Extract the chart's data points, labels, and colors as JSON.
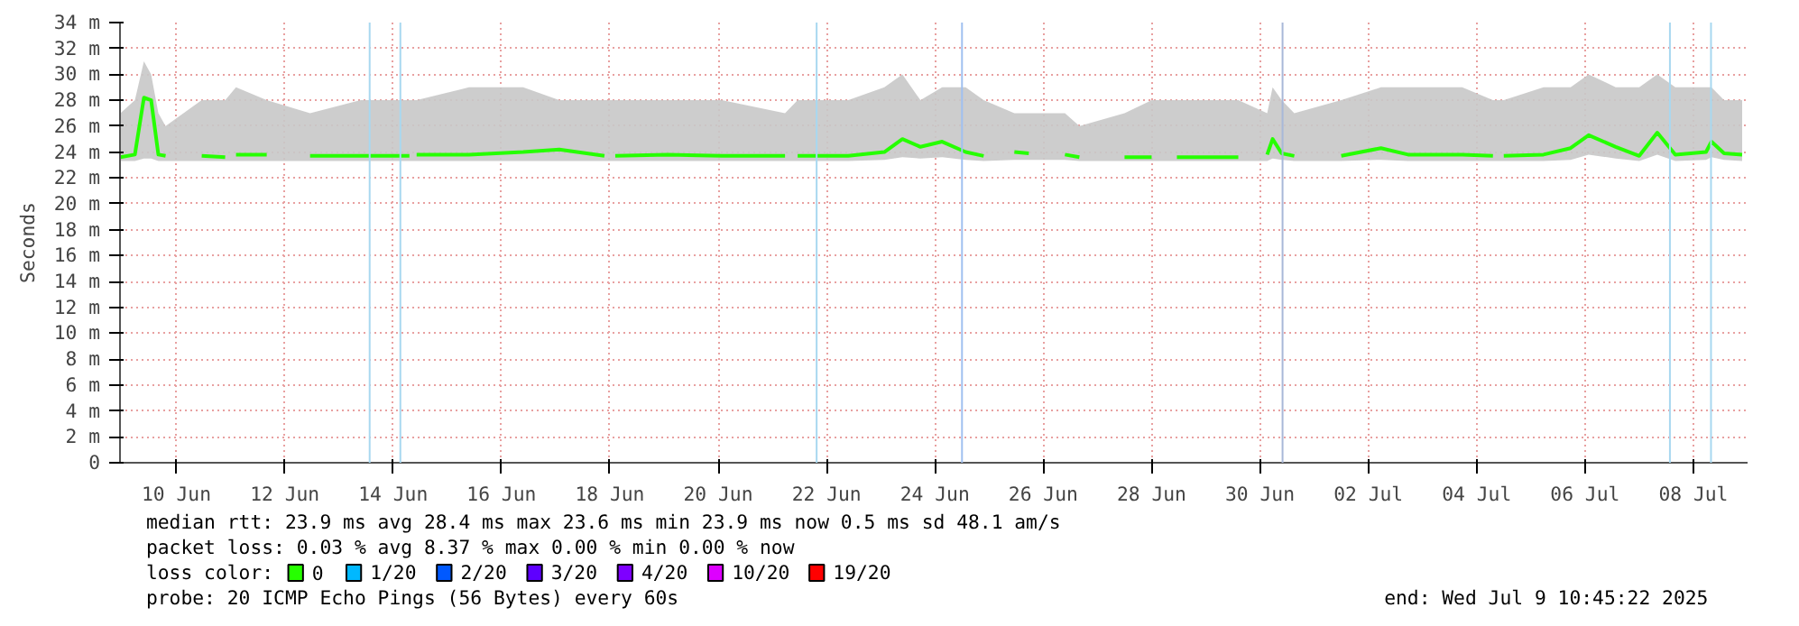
{
  "chart_data": {
    "type": "line",
    "ylabel": "Seconds",
    "x": [
      "2025-06-08T23:12",
      "2025-06-09T05:36",
      "2025-06-09T09:36",
      "2025-06-09T12:48",
      "2025-06-09T16:00",
      "2025-06-09T19:12",
      "2025-06-10T01:36",
      "2025-06-10T11:12",
      "2025-06-10T21:36",
      "2025-06-11T00:00",
      "2025-06-11T02:24",
      "2025-06-11T16:00",
      "2025-06-12T01:36",
      "2025-06-12T11:12",
      "2025-06-13T09:36",
      "2025-06-14T07:12",
      "2025-06-14T08:48",
      "2025-06-14T10:24",
      "2025-06-15T09:36",
      "2025-06-16T09:36",
      "2025-06-17T01:36",
      "2025-06-17T21:36",
      "2025-06-18T00:00",
      "2025-06-18T02:24",
      "2025-06-19T01:36",
      "2025-06-20T01:36",
      "2025-06-21T05:36",
      "2025-06-21T08:00",
      "2025-06-21T11:12",
      "2025-06-22T09:36",
      "2025-06-23T01:36",
      "2025-06-23T09:36",
      "2025-06-23T17:36",
      "2025-06-24T03:12",
      "2025-06-24T13:36",
      "2025-06-24T21:36",
      "2025-06-25T01:36",
      "2025-06-25T11:12",
      "2025-06-25T17:36",
      "2025-06-26T01:36",
      "2025-06-26T09:36",
      "2025-06-26T16:00",
      "2025-06-27T01:36",
      "2025-06-27T12:00",
      "2025-06-28T00:00",
      "2025-06-28T05:36",
      "2025-06-28T11:12",
      "2025-06-29T14:24",
      "2025-06-29T22:24",
      "2025-06-30T03:12",
      "2025-06-30T05:36",
      "2025-06-30T09:36",
      "2025-06-30T15:12",
      "2025-07-01T01:36",
      "2025-07-01T12:00",
      "2025-07-02T05:36",
      "2025-07-02T17:36",
      "2025-07-03T17:36",
      "2025-07-04T07:12",
      "2025-07-04T09:36",
      "2025-07-04T12:00",
      "2025-07-05T05:36",
      "2025-07-05T17:36",
      "2025-07-06T01:36",
      "2025-07-06T13:36",
      "2025-07-07T00:00",
      "2025-07-07T08:00",
      "2025-07-07T16:00",
      "2025-07-08T05:36",
      "2025-07-08T08:00",
      "2025-07-08T13:36",
      "2025-07-08T21:36"
    ],
    "series": [
      {
        "name": "0",
        "color": "#26ff00",
        "values": [
          23.6,
          23.8,
          28.2,
          28.0,
          23.8,
          23.7,
          null,
          23.7,
          23.6,
          null,
          23.8,
          23.8,
          null,
          23.7,
          23.7,
          23.7,
          null,
          23.8,
          23.8,
          24.0,
          24.2,
          23.7,
          null,
          23.7,
          23.8,
          23.7,
          23.7,
          null,
          23.7,
          23.7,
          24.0,
          25.0,
          24.4,
          24.8,
          24.0,
          23.7,
          null,
          24.0,
          23.9,
          null,
          23.8,
          23.6,
          null,
          23.6,
          23.6,
          null,
          23.6,
          23.6,
          null,
          23.8,
          25.0,
          23.9,
          23.7,
          null,
          23.7,
          24.3,
          23.8,
          23.8,
          23.7,
          null,
          23.7,
          23.8,
          24.3,
          25.3,
          24.4,
          23.7,
          25.5,
          23.8,
          24.0,
          24.8,
          23.9,
          23.8
        ],
        "lower": [
          23.3,
          23.3,
          23.5,
          23.5,
          23.3,
          23.3,
          null,
          23.3,
          23.3,
          null,
          23.3,
          23.3,
          null,
          23.3,
          23.3,
          23.3,
          null,
          23.3,
          23.3,
          23.3,
          23.3,
          23.3,
          null,
          23.3,
          23.3,
          23.3,
          23.3,
          null,
          23.3,
          23.3,
          23.4,
          23.6,
          23.5,
          23.6,
          23.4,
          23.3,
          null,
          23.4,
          23.4,
          null,
          23.4,
          23.3,
          null,
          23.3,
          23.3,
          null,
          23.3,
          23.3,
          null,
          23.3,
          23.5,
          23.4,
          23.3,
          null,
          23.3,
          23.4,
          23.3,
          23.3,
          23.3,
          null,
          23.3,
          23.3,
          23.4,
          23.8,
          23.5,
          23.3,
          23.8,
          23.3,
          23.4,
          23.6,
          23.4,
          23.3
        ],
        "upper": [
          27,
          28,
          31,
          30,
          27,
          26,
          null,
          28,
          28,
          null,
          29,
          28,
          null,
          27,
          28,
          28,
          null,
          28,
          29,
          29,
          28,
          28,
          null,
          28,
          28,
          28,
          27,
          null,
          28,
          28,
          29,
          30,
          28,
          29,
          29,
          28,
          null,
          27,
          27,
          null,
          27,
          26,
          null,
          27,
          28,
          null,
          28,
          28,
          null,
          27,
          29,
          28,
          27,
          null,
          28,
          29,
          29,
          29,
          28,
          null,
          28,
          29,
          29,
          30,
          29,
          29,
          30,
          29,
          29,
          29,
          28,
          28
        ]
      },
      {
        "name": "1/20",
        "color": "#00b8ff",
        "values": [
          null,
          null,
          null,
          null,
          null,
          null,
          null,
          null,
          null,
          null,
          null,
          null,
          null,
          null,
          null,
          null,
          null,
          null,
          null,
          null,
          null,
          null,
          null,
          null,
          null,
          null,
          null,
          null,
          null,
          null,
          null,
          null,
          null,
          null,
          null,
          null,
          null,
          null,
          null,
          null,
          null,
          null,
          null,
          null,
          null,
          null,
          null,
          null,
          null,
          null,
          null,
          null,
          null,
          null,
          null,
          null,
          null,
          null,
          null,
          null,
          null,
          null,
          null,
          null,
          null,
          null,
          null,
          null,
          null,
          null,
          null,
          null
        ]
      },
      {
        "name": "2/20",
        "color": "#0059ff",
        "values": [
          null,
          null,
          null,
          null,
          null,
          null,
          null,
          null,
          null,
          null,
          null,
          null,
          null,
          null,
          null,
          null,
          null,
          null,
          null,
          null,
          null,
          null,
          null,
          null,
          null,
          null,
          null,
          null,
          null,
          null,
          null,
          null,
          null,
          null,
          null,
          null,
          null,
          null,
          null,
          null,
          null,
          null,
          null,
          null,
          null,
          null,
          null,
          null,
          null,
          null,
          null,
          null,
          null,
          null,
          null,
          null,
          null,
          null,
          null,
          null,
          null,
          null,
          null,
          null,
          null,
          null,
          null,
          null,
          null,
          null,
          null,
          null
        ]
      },
      {
        "name": "3/20",
        "color": "#5e00ff",
        "values": [
          null,
          null,
          null,
          null,
          null,
          null,
          null,
          null,
          null,
          null,
          null,
          null,
          null,
          null,
          null,
          null,
          null,
          null,
          null,
          null,
          null,
          null,
          null,
          null,
          null,
          null,
          null,
          null,
          null,
          null,
          null,
          null,
          null,
          null,
          null,
          null,
          null,
          null,
          null,
          null,
          null,
          null,
          null,
          null,
          null,
          null,
          null,
          null,
          null,
          null,
          null,
          null,
          null,
          null,
          null,
          null,
          null,
          null,
          null,
          null,
          null,
          null,
          null,
          null,
          null,
          null,
          null,
          null,
          null,
          null,
          null,
          null
        ]
      },
      {
        "name": "4/20",
        "color": "#7e00ff",
        "values": [
          null,
          null,
          null,
          null,
          null,
          null,
          null,
          null,
          null,
          null,
          null,
          null,
          null,
          null,
          null,
          null,
          null,
          null,
          null,
          null,
          null,
          null,
          null,
          null,
          null,
          null,
          null,
          null,
          null,
          null,
          null,
          null,
          null,
          null,
          null,
          null,
          null,
          null,
          null,
          null,
          null,
          null,
          null,
          null,
          null,
          null,
          null,
          null,
          null,
          null,
          null,
          null,
          null,
          null,
          null,
          null,
          null,
          null,
          null,
          null,
          null,
          null,
          null,
          null,
          null,
          null,
          null,
          null,
          null,
          null,
          null,
          null
        ]
      },
      {
        "name": "10/20",
        "color": "#dd00ff",
        "values": [
          null,
          null,
          null,
          null,
          null,
          null,
          null,
          null,
          null,
          null,
          null,
          null,
          null,
          null,
          null,
          null,
          null,
          null,
          null,
          null,
          null,
          null,
          null,
          null,
          null,
          null,
          null,
          null,
          null,
          null,
          null,
          null,
          null,
          null,
          null,
          null,
          null,
          null,
          null,
          null,
          null,
          null,
          null,
          null,
          null,
          null,
          null,
          null,
          null,
          null,
          null,
          null,
          null,
          null,
          null,
          null,
          null,
          null,
          null,
          null,
          null,
          null,
          null,
          null,
          null,
          null,
          null,
          null,
          null,
          null,
          null,
          null
        ]
      },
      {
        "name": "19/20",
        "color": "#ff0000",
        "values": [
          null,
          null,
          null,
          null,
          null,
          null,
          null,
          null,
          null,
          null,
          null,
          null,
          null,
          null,
          null,
          null,
          null,
          null,
          null,
          null,
          null,
          null,
          null,
          null,
          null,
          null,
          null,
          null,
          null,
          null,
          null,
          null,
          null,
          null,
          null,
          null,
          null,
          null,
          null,
          null,
          null,
          null,
          null,
          null,
          null,
          null,
          null,
          null,
          null,
          null,
          null,
          null,
          null,
          null,
          null,
          null,
          null,
          null,
          null,
          null,
          null,
          null,
          null,
          null,
          null,
          null,
          null,
          null,
          null,
          null,
          null,
          null
        ]
      }
    ],
    "xlim": [
      "2025-06-08T23:00",
      "2025-07-09T00:00"
    ],
    "xticks": [
      {
        "value": "2025-06-10",
        "label": "10 Jun"
      },
      {
        "value": "2025-06-12",
        "label": "12 Jun"
      },
      {
        "value": "2025-06-14",
        "label": "14 Jun"
      },
      {
        "value": "2025-06-16",
        "label": "16 Jun"
      },
      {
        "value": "2025-06-18",
        "label": "18 Jun"
      },
      {
        "value": "2025-06-20",
        "label": "20 Jun"
      },
      {
        "value": "2025-06-22",
        "label": "22 Jun"
      },
      {
        "value": "2025-06-24",
        "label": "24 Jun"
      },
      {
        "value": "2025-06-26",
        "label": "26 Jun"
      },
      {
        "value": "2025-06-28",
        "label": "28 Jun"
      },
      {
        "value": "2025-06-30",
        "label": "30 Jun"
      },
      {
        "value": "2025-07-02",
        "label": "02 Jul"
      },
      {
        "value": "2025-07-04",
        "label": "04 Jul"
      },
      {
        "value": "2025-07-06",
        "label": "06 Jul"
      },
      {
        "value": "2025-07-08",
        "label": "08 Jul"
      }
    ],
    "ylim": [
      0,
      34
    ],
    "yticks": [
      0,
      {
        "value": 2,
        "label": "2 m"
      },
      {
        "value": 4,
        "label": "4 m"
      },
      {
        "value": 6,
        "label": "6 m"
      },
      {
        "value": 8,
        "label": "8 m"
      },
      {
        "value": 10,
        "label": "10 m"
      },
      {
        "value": 12,
        "label": "12 m"
      },
      {
        "value": 14,
        "label": "14 m"
      },
      {
        "value": 16,
        "label": "16 m"
      },
      {
        "value": 18,
        "label": "18 m"
      },
      {
        "value": 20,
        "label": "20 m"
      },
      {
        "value": 22,
        "label": "22 m"
      },
      {
        "value": 24,
        "label": "24 m"
      },
      {
        "value": 26,
        "label": "26 m"
      },
      {
        "value": 28,
        "label": "28 m"
      },
      {
        "value": 30,
        "label": "30 m"
      },
      {
        "value": 32,
        "label": "32 m"
      },
      {
        "value": 34,
        "label": "34 m"
      }
    ],
    "ref_lines": [
      {
        "axis": "x",
        "value": "2025-06-13T13:36",
        "color": "#a8d8f0"
      },
      {
        "axis": "x",
        "value": "2025-06-14T03:12",
        "color": "#a8d8f0"
      },
      {
        "axis": "x",
        "value": "2025-06-21T19:36",
        "color": "#a8d8f0"
      },
      {
        "axis": "x",
        "value": "2025-06-24T12:00",
        "color": "#a0c0f0"
      },
      {
        "axis": "x",
        "value": "2025-06-30T10:00",
        "color": "#a8b8d8"
      },
      {
        "axis": "x",
        "value": "2025-07-07T13:36",
        "color": "#a8d8f0"
      },
      {
        "axis": "x",
        "value": "2025-07-08T07:48",
        "color": "#a8d8f0"
      }
    ],
    "grid": true,
    "legend": "bottom",
    "legend_title": "loss color:",
    "marker": "none",
    "annotations": [
      "median rtt:  23.9 ms avg  28.4 ms max  23.6 ms min  23.9 ms now  0.5 ms sd  48.1   am/s",
      "packet loss: 0.03 % avg  8.37 % max  0.00 % min  0.00 % now",
      "probe:       20 ICMP Echo Pings (56 Bytes) every 60s",
      "end: Wed Jul  9 10:45:22 2025"
    ]
  }
}
